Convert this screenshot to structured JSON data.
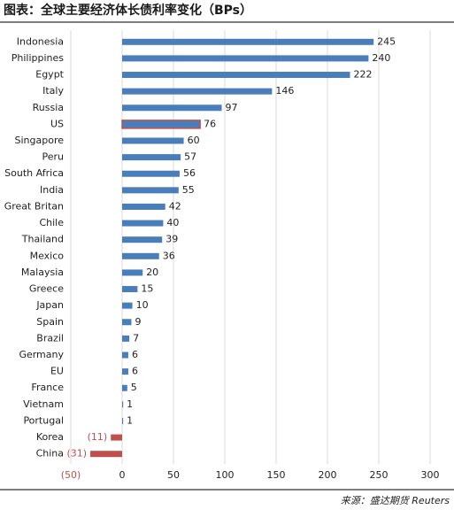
{
  "chart_data": {
    "type": "bar",
    "orientation": "horizontal",
    "title": "图表：全球主要经济体长债利率变化（BPs）",
    "source": "来源：盛达期货 Reuters",
    "categories": [
      "Indonesia",
      "Philippines",
      "Egypt",
      "Italy",
      "Russia",
      "US",
      "Singapore",
      "Peru",
      "South Africa",
      "India",
      "Great Britan",
      "Chile",
      "Thailand",
      "Mexico",
      "Malaysia",
      "Greece",
      "Japan",
      "Spain",
      "Brazil",
      "Germany",
      "EU",
      "France",
      "Vietnam",
      "Portugal",
      "Korea",
      "China"
    ],
    "values": [
      245,
      240,
      222,
      146,
      97,
      76,
      60,
      57,
      56,
      55,
      42,
      40,
      39,
      36,
      20,
      15,
      10,
      9,
      7,
      6,
      6,
      5,
      1,
      1,
      -11,
      -31
    ],
    "value_labels": [
      "245",
      "240",
      "222",
      "146",
      "97",
      "76",
      "60",
      "57",
      "56",
      "55",
      "42",
      "40",
      "39",
      "36",
      "20",
      "15",
      "10",
      "9",
      "7",
      "6",
      "6",
      "5",
      "1",
      "1",
      "(11)",
      "(31)"
    ],
    "color": "#4a7ebb",
    "negative_color": "#c0504d",
    "highlight": "US",
    "xlim": [
      -50,
      300
    ],
    "xticks": [
      {
        "value": -50,
        "label": "(50)"
      },
      0,
      50,
      100,
      150,
      200,
      250,
      300
    ],
    "grid": true
  }
}
